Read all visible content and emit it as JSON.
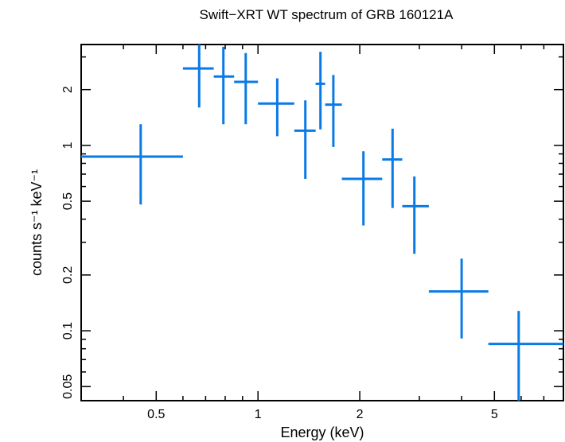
{
  "chart_data": {
    "type": "scatter",
    "title": "Swift−XRT WT spectrum of GRB 160121A",
    "xlabel": "Energy (keV)",
    "ylabel": "counts s⁻¹ keV⁻¹",
    "xscale": "log",
    "yscale": "log",
    "xlim": [
      0.3,
      8.0
    ],
    "ylim": [
      0.042,
      3.5
    ],
    "xticks": [
      {
        "value": 0.5,
        "label": "0.5"
      },
      {
        "value": 1,
        "label": "1"
      },
      {
        "value": 2,
        "label": "2"
      },
      {
        "value": 5,
        "label": "5"
      }
    ],
    "yticks": [
      {
        "value": 0.05,
        "label": "0.05"
      },
      {
        "value": 0.1,
        "label": "0.1"
      },
      {
        "value": 0.2,
        "label": "0.2"
      },
      {
        "value": 0.5,
        "label": "0.5"
      },
      {
        "value": 1,
        "label": "1"
      },
      {
        "value": 2,
        "label": "2"
      }
    ],
    "color": "#0a7ae6",
    "points": [
      {
        "x": 0.45,
        "xlo": 0.3,
        "xhi": 0.6,
        "y": 0.87,
        "ylo": 0.48,
        "yhi": 1.3
      },
      {
        "x": 0.67,
        "xlo": 0.6,
        "xhi": 0.74,
        "y": 2.6,
        "ylo": 1.6,
        "yhi": 3.7
      },
      {
        "x": 0.79,
        "xlo": 0.74,
        "xhi": 0.85,
        "y": 2.35,
        "ylo": 1.3,
        "yhi": 3.4
      },
      {
        "x": 0.92,
        "xlo": 0.85,
        "xhi": 1.0,
        "y": 2.2,
        "ylo": 1.3,
        "yhi": 3.15
      },
      {
        "x": 1.14,
        "xlo": 1.0,
        "xhi": 1.28,
        "y": 1.68,
        "ylo": 1.12,
        "yhi": 2.3
      },
      {
        "x": 1.38,
        "xlo": 1.28,
        "xhi": 1.48,
        "y": 1.2,
        "ylo": 0.66,
        "yhi": 1.75
      },
      {
        "x": 1.53,
        "xlo": 1.48,
        "xhi": 1.58,
        "y": 2.15,
        "ylo": 1.22,
        "yhi": 3.2
      },
      {
        "x": 1.67,
        "xlo": 1.58,
        "xhi": 1.77,
        "y": 1.66,
        "ylo": 0.98,
        "yhi": 2.4
      },
      {
        "x": 2.05,
        "xlo": 1.77,
        "xhi": 2.33,
        "y": 0.66,
        "ylo": 0.37,
        "yhi": 0.93
      },
      {
        "x": 2.5,
        "xlo": 2.33,
        "xhi": 2.67,
        "y": 0.84,
        "ylo": 0.46,
        "yhi": 1.23
      },
      {
        "x": 2.9,
        "xlo": 2.67,
        "xhi": 3.2,
        "y": 0.47,
        "ylo": 0.26,
        "yhi": 0.68
      },
      {
        "x": 4.0,
        "xlo": 3.2,
        "xhi": 4.8,
        "y": 0.163,
        "ylo": 0.091,
        "yhi": 0.245
      },
      {
        "x": 5.9,
        "xlo": 4.8,
        "xhi": 8.0,
        "y": 0.085,
        "ylo": 0.042,
        "yhi": 0.128
      }
    ]
  }
}
